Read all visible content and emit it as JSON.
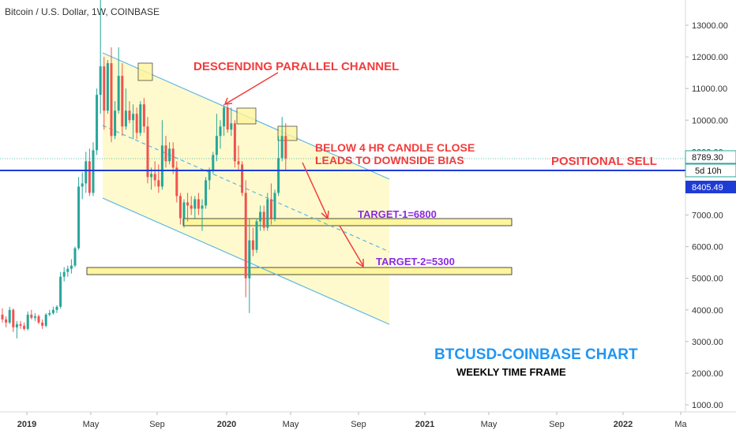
{
  "header": {
    "title": "Bitcoin / U.S. Dollar, 1W, COINBASE"
  },
  "colors": {
    "up": "#26a69a",
    "down": "#ef5350",
    "channel": "#5bb7e6",
    "channel_fill": "#fff9c4",
    "zone_fill": "#fff59d",
    "positional_line": "#1f3bd6",
    "price_tag": "#1f3bd6",
    "annotation_red": "#f23c3c",
    "annotation_purple": "#8a2be2",
    "title_blue": "#2196f3"
  },
  "price_tags": {
    "last_price": "8789.30",
    "countdown": "5d 10h",
    "positional_level": "8405.49"
  },
  "annotations": {
    "channel_label": "DESCENDING PARALLEL CHANNEL",
    "note_line1": "BELOW 4 HR CANDLE CLOSE",
    "note_line2": "LEADS TO DOWNSIDE BIAS",
    "positional_sell": "POSITIONAL SELL",
    "target1": "TARGET-1=6800",
    "target2": "TARGET-2=5300",
    "chart_title": "BTCUSD-COINBASE CHART",
    "chart_subtitle": "WEEKLY TIME FRAME"
  },
  "chart_data": {
    "type": "candlestick",
    "symbol": "Bitcoin / U.S. Dollar",
    "timeframe": "1W",
    "exchange": "COINBASE",
    "y_axis": {
      "ticks": [
        "13000.00",
        "12000.00",
        "11000.00",
        "10000.00",
        "9000.00",
        "8000.00",
        "7000.00",
        "6000.00",
        "5000.00",
        "4000.00",
        "3000.00",
        "2000.00",
        "1000.00"
      ],
      "range": [
        1000,
        13500
      ]
    },
    "x_axis": {
      "ticks": [
        "2019",
        "May",
        "Sep",
        "2020",
        "May",
        "Sep",
        "2021",
        "May",
        "Sep",
        "2022",
        "Ma"
      ]
    },
    "horizontal_levels": {
      "positional_sell": 8405.49,
      "target_1": 6800,
      "target_2": 5300
    },
    "last_price": 8789.3,
    "candles": [
      [
        3850,
        4050,
        3600,
        3700
      ],
      [
        3700,
        3800,
        3450,
        3600
      ],
      [
        3600,
        4100,
        3550,
        4000
      ],
      [
        4000,
        4050,
        3300,
        3450
      ],
      [
        3450,
        3650,
        3100,
        3550
      ],
      [
        3550,
        3650,
        3400,
        3500
      ],
      [
        3500,
        3600,
        3350,
        3400
      ],
      [
        3400,
        3950,
        3350,
        3850
      ],
      [
        3850,
        4000,
        3700,
        3750
      ],
      [
        3750,
        3900,
        3650,
        3800
      ],
      [
        3800,
        3850,
        3550,
        3600
      ],
      [
        3600,
        3700,
        3400,
        3500
      ],
      [
        3500,
        3900,
        3450,
        3850
      ],
      [
        3850,
        4000,
        3800,
        3900
      ],
      [
        3900,
        4100,
        3850,
        4000
      ],
      [
        4000,
        4150,
        3900,
        4100
      ],
      [
        4100,
        5200,
        4050,
        5050
      ],
      [
        5050,
        5350,
        4900,
        5200
      ],
      [
        5200,
        5400,
        5050,
        5300
      ],
      [
        5300,
        5600,
        5150,
        5400
      ],
      [
        5400,
        6000,
        5350,
        5950
      ],
      [
        5950,
        8200,
        5900,
        7900
      ],
      [
        7900,
        8350,
        7500,
        8000
      ],
      [
        8000,
        9000,
        7700,
        8700
      ],
      [
        8700,
        9100,
        7600,
        7700
      ],
      [
        7700,
        9300,
        7600,
        9050
      ],
      [
        9050,
        11000,
        8900,
        10800
      ],
      [
        10800,
        13800,
        10200,
        11700
      ],
      [
        11700,
        12000,
        9700,
        10300
      ],
      [
        10300,
        11900,
        10200,
        11800
      ],
      [
        11800,
        12300,
        9300,
        9500
      ],
      [
        9500,
        10600,
        9400,
        10300
      ],
      [
        10300,
        12300,
        10200,
        11400
      ],
      [
        11400,
        11800,
        9500,
        9800
      ],
      [
        9800,
        11000,
        9700,
        10300
      ],
      [
        10300,
        10600,
        9900,
        10000
      ],
      [
        10000,
        10500,
        9400,
        10200
      ],
      [
        10200,
        10400,
        9400,
        9600
      ],
      [
        9600,
        10600,
        9500,
        10500
      ],
      [
        10500,
        10700,
        9600,
        9800
      ],
      [
        9800,
        10100,
        8000,
        8200
      ],
      [
        8200,
        8500,
        7800,
        8300
      ],
      [
        8300,
        8700,
        7900,
        8100
      ],
      [
        8100,
        8600,
        7700,
        7900
      ],
      [
        7900,
        10000,
        7800,
        9200
      ],
      [
        9200,
        9500,
        8500,
        8700
      ],
      [
        8700,
        9300,
        8600,
        9100
      ],
      [
        9100,
        9300,
        8300,
        8500
      ],
      [
        8500,
        8700,
        7400,
        7600
      ],
      [
        7600,
        7700,
        6700,
        6900
      ],
      [
        6900,
        7500,
        6600,
        7400
      ],
      [
        7400,
        7700,
        6800,
        7300
      ],
      [
        7300,
        7600,
        7000,
        7200
      ],
      [
        7200,
        7600,
        6900,
        7500
      ],
      [
        7500,
        7700,
        7000,
        7200
      ],
      [
        7200,
        7500,
        6500,
        7300
      ],
      [
        7300,
        8200,
        7200,
        8100
      ],
      [
        8100,
        8500,
        7800,
        8400
      ],
      [
        8400,
        9000,
        8300,
        8900
      ],
      [
        8900,
        10200,
        8700,
        9500
      ],
      [
        9500,
        10000,
        9100,
        9800
      ],
      [
        9800,
        10500,
        9500,
        10400
      ],
      [
        10400,
        10500,
        9600,
        9700
      ],
      [
        9700,
        10400,
        9500,
        9900
      ],
      [
        9900,
        10000,
        8500,
        8700
      ],
      [
        8700,
        9200,
        8400,
        8600
      ],
      [
        8600,
        8700,
        7600,
        7700
      ],
      [
        7700,
        8100,
        4400,
        5000
      ],
      [
        5000,
        6900,
        3900,
        6200
      ],
      [
        6200,
        6600,
        5700,
        5900
      ],
      [
        5900,
        6900,
        5800,
        6800
      ],
      [
        6800,
        7300,
        6500,
        7100
      ],
      [
        7100,
        7300,
        6500,
        6600
      ],
      [
        6600,
        7700,
        6500,
        7500
      ],
      [
        7500,
        8000,
        6700,
        6900
      ],
      [
        6900,
        7800,
        6800,
        7700
      ],
      [
        7700,
        9500,
        7600,
        8800
      ],
      [
        8800,
        10100,
        8700,
        9500
      ],
      [
        9500,
        9900,
        8400,
        8789
      ]
    ]
  }
}
